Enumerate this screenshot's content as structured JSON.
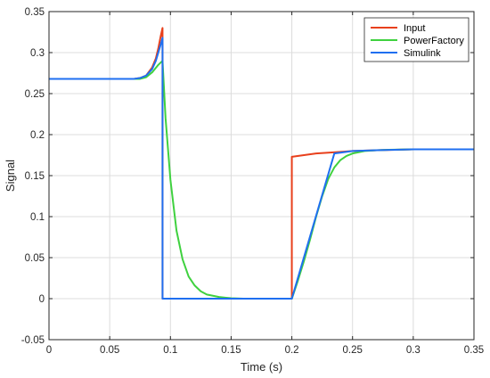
{
  "chart_data": {
    "type": "line",
    "title": "",
    "xlabel": "Time (s)",
    "ylabel": "Signal",
    "xlim": [
      0,
      0.35
    ],
    "ylim": [
      -0.05,
      0.35
    ],
    "xticks": [
      0,
      0.05,
      0.1,
      0.15,
      0.2,
      0.25,
      0.3,
      0.35
    ],
    "yticks": [
      -0.05,
      0,
      0.05,
      0.1,
      0.15,
      0.2,
      0.25,
      0.3,
      0.35
    ],
    "xtick_labels": [
      "0",
      "0.05",
      "0.1",
      "0.15",
      "0.2",
      "0.25",
      "0.3",
      "0.35"
    ],
    "ytick_labels": [
      "-0.05",
      "0",
      "0.05",
      "0.1",
      "0.15",
      "0.2",
      "0.25",
      "0.3",
      "0.35"
    ],
    "grid": true,
    "legend_position": "top-right",
    "series": [
      {
        "name": "Input",
        "color": "#e8401c",
        "x": [
          0,
          0.07,
          0.075,
          0.08,
          0.085,
          0.088,
          0.09,
          0.092,
          0.0935,
          0.0935,
          0.2,
          0.2,
          0.21,
          0.22,
          0.23,
          0.24,
          0.25,
          0.27,
          0.3,
          0.35
        ],
        "y": [
          0.268,
          0.268,
          0.269,
          0.272,
          0.282,
          0.293,
          0.305,
          0.32,
          0.33,
          0.0,
          0.0,
          0.173,
          0.175,
          0.177,
          0.178,
          0.179,
          0.18,
          0.181,
          0.182,
          0.182
        ]
      },
      {
        "name": "PowerFactory",
        "color": "#3fd13f",
        "x": [
          0,
          0.07,
          0.075,
          0.08,
          0.085,
          0.09,
          0.0935,
          0.096,
          0.1,
          0.105,
          0.11,
          0.115,
          0.12,
          0.125,
          0.13,
          0.14,
          0.15,
          0.16,
          0.18,
          0.2,
          0.205,
          0.21,
          0.215,
          0.22,
          0.225,
          0.23,
          0.235,
          0.24,
          0.245,
          0.25,
          0.26,
          0.27,
          0.28,
          0.3,
          0.35
        ],
        "y": [
          0.268,
          0.268,
          0.268,
          0.27,
          0.276,
          0.285,
          0.29,
          0.22,
          0.145,
          0.083,
          0.048,
          0.027,
          0.016,
          0.009,
          0.005,
          0.002,
          0.0005,
          0.0,
          0.0,
          0.0,
          0.022,
          0.046,
          0.072,
          0.1,
          0.125,
          0.146,
          0.16,
          0.169,
          0.174,
          0.177,
          0.18,
          0.181,
          0.1815,
          0.182,
          0.182
        ]
      },
      {
        "name": "Simulink",
        "color": "#1f6ff0",
        "x": [
          0,
          0.07,
          0.075,
          0.08,
          0.085,
          0.088,
          0.09,
          0.092,
          0.0935,
          0.0935,
          0.2,
          0.235,
          0.24,
          0.25,
          0.27,
          0.3,
          0.35
        ],
        "y": [
          0.268,
          0.268,
          0.269,
          0.272,
          0.28,
          0.29,
          0.3,
          0.31,
          0.318,
          0.0,
          0.0,
          0.177,
          0.178,
          0.18,
          0.181,
          0.182,
          0.182
        ]
      }
    ]
  }
}
